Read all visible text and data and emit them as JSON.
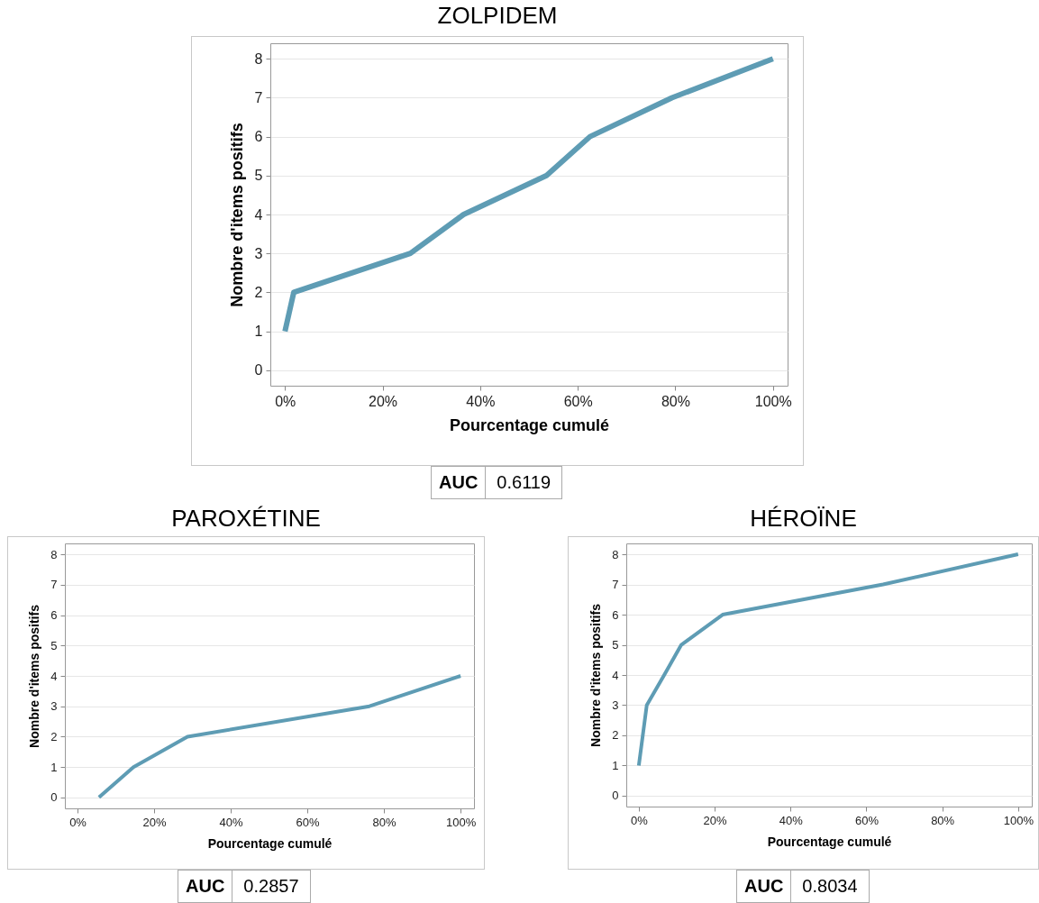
{
  "chart_data": [
    {
      "type": "line",
      "title": "ZOLPIDEM",
      "xlabel": "Pourcentage cumulé",
      "ylabel": "Nombre d'items positifs",
      "color": "#5e9cb4",
      "x": [
        0,
        1.8,
        25.7,
        36.6,
        53.6,
        62.5,
        79.3,
        100
      ],
      "values": [
        1,
        2,
        3,
        4,
        5,
        6,
        7,
        8
      ],
      "xlim": [
        -3,
        103
      ],
      "xticks": [
        {
          "value": 0,
          "label": "0%"
        },
        {
          "value": 20,
          "label": "20%"
        },
        {
          "value": 40,
          "label": "40%"
        },
        {
          "value": 60,
          "label": "60%"
        },
        {
          "value": 80,
          "label": "80%"
        },
        {
          "value": 100,
          "label": "100%"
        }
      ],
      "ylim": [
        -0.4,
        8.4
      ],
      "yticks": [
        0,
        1,
        2,
        3,
        4,
        5,
        6,
        7,
        8
      ],
      "grid": "y",
      "annotations": [
        "AUC",
        "0.6119"
      ]
    },
    {
      "type": "line",
      "title": "PAROXÉTINE",
      "xlabel": "Pourcentage cumulé",
      "ylabel": "Nombre d'items positifs",
      "color": "#5e9cb4",
      "x": [
        5.6,
        14.6,
        28.7,
        76.2,
        100
      ],
      "values": [
        0,
        1,
        2,
        3,
        4
      ],
      "xlim": [
        -3.3,
        103.5
      ],
      "xticks": [
        {
          "value": 0,
          "label": "0%"
        },
        {
          "value": 20,
          "label": "20%"
        },
        {
          "value": 40,
          "label": "40%"
        },
        {
          "value": 60,
          "label": "60%"
        },
        {
          "value": 80,
          "label": "80%"
        },
        {
          "value": 100,
          "label": "100%"
        }
      ],
      "ylim": [
        -0.36,
        8.36
      ],
      "yticks": [
        0,
        1,
        2,
        3,
        4,
        5,
        6,
        7,
        8
      ],
      "grid": "y",
      "annotations": [
        "AUC",
        "0.2857"
      ]
    },
    {
      "type": "line",
      "title": "HÉROÏNE",
      "xlabel": "Pourcentage cumulé",
      "ylabel": "Nombre d'items positifs",
      "color": "#5e9cb4",
      "x": [
        0,
        2.1,
        6.7,
        11.2,
        22.1,
        64.4,
        100
      ],
      "values": [
        1,
        3,
        4,
        5,
        6,
        7,
        8
      ],
      "xlim": [
        -3.3,
        103.6
      ],
      "xticks": [
        {
          "value": 0,
          "label": "0%"
        },
        {
          "value": 20,
          "label": "20%"
        },
        {
          "value": 40,
          "label": "40%"
        },
        {
          "value": 60,
          "label": "60%"
        },
        {
          "value": 80,
          "label": "80%"
        },
        {
          "value": 100,
          "label": "100%"
        }
      ],
      "ylim": [
        -0.36,
        8.36
      ],
      "yticks": [
        0,
        1,
        2,
        3,
        4,
        5,
        6,
        7,
        8
      ],
      "grid": "y",
      "annotations": [
        "AUC",
        "0.8034"
      ]
    }
  ]
}
